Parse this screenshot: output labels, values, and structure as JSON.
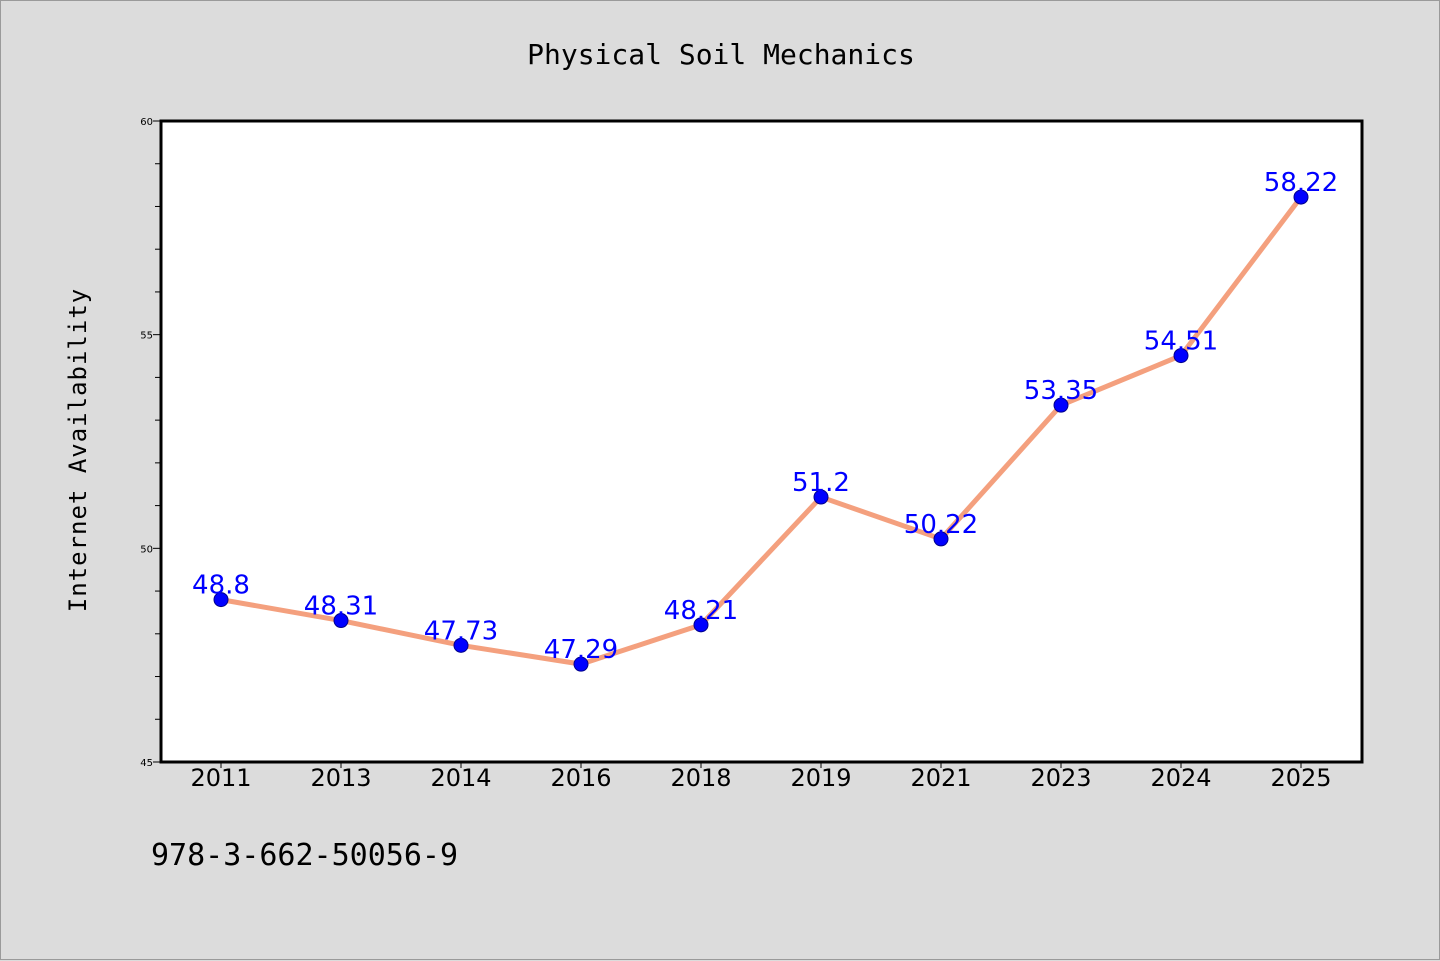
{
  "chart_data": {
    "type": "line",
    "title": "Physical Soil Mechanics",
    "xlabel": "",
    "ylabel": "Internet Availability",
    "categories": [
      "2011",
      "2013",
      "2014",
      "2016",
      "2018",
      "2019",
      "2021",
      "2023",
      "2024",
      "2025"
    ],
    "series": [
      {
        "values": [
          48.8,
          48.31,
          47.73,
          47.29,
          48.21,
          51.2,
          50.22,
          53.35,
          54.51,
          58.22
        ],
        "labels": [
          "48.8",
          "48.31",
          "47.73",
          "47.29",
          "48.21",
          "51.2",
          "50.22",
          "53.35",
          "54.51",
          "58.22"
        ]
      }
    ],
    "ylim": [
      45,
      60
    ],
    "yticks": [
      "45",
      "50",
      "55",
      "60"
    ],
    "grid": false,
    "colors": {
      "line": "#f4a07e",
      "marker": "#0000ff",
      "data_label": "#0000ff",
      "background": "#dcdcdc",
      "plot_background": "#ffffff"
    }
  },
  "footer": {
    "text": "978-3-662-50056-9"
  }
}
